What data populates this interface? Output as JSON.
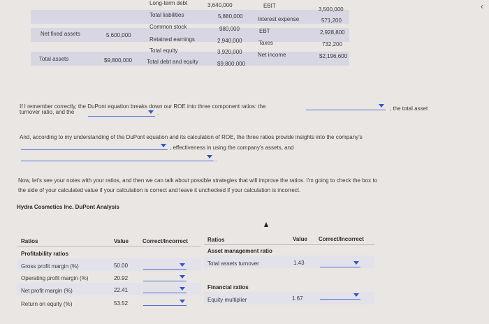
{
  "balance": {
    "long_term_debt_label": "Long-term debt",
    "long_term_debt_value": "3,640,000",
    "total_liabilities_label": "Total liabilities",
    "total_liabilities_value": "5,880,000",
    "common_stock_label": "Common stock",
    "common_stock_value": "980,000",
    "retained_earnings_label": "Retained earnings",
    "retained_earnings_value": "2,940,000",
    "total_equity_label": "Total equity",
    "total_equity_value": "3,920,000",
    "total_debt_equity_label": "Total debt and equity",
    "total_debt_equity_value": "$9,800,000",
    "net_fixed_assets_label": "Net fixed assets",
    "net_fixed_assets_value": "5,600,000",
    "total_assets_label": "Total assets",
    "total_assets_value": "$9,800,000"
  },
  "income": {
    "ebit_label": "EBIT",
    "ebit_value": "3,500,000",
    "interest_label": "Interest expense",
    "interest_value": "571,200",
    "ebt_label": "EBT",
    "ebt_value": "2,928,800",
    "taxes_label": "Taxes",
    "taxes_value": "732,200",
    "net_income_label": "Net income",
    "net_income_value": "$2,196,600"
  },
  "text": {
    "p1_a": "If I remember correctly, the DuPont equation breaks down our ROE into three component ratios: the",
    "p1_b": ", the total asset",
    "p1_c": "turnover ratio, and the",
    "p1_d": ".",
    "p2_a": "And, according to my understanding of the DuPont equation and its calculation of ROE, the three ratios provide insights into the company's",
    "p2_b": ", effectiveness in using the company's assets, and",
    "p2_c": ".",
    "p3_a": "Now, let's see your notes with your ratios, and then we can talk about possible strategies that will improve the ratios. I'm going to check the box to",
    "p3_b": "the side of your calculated value if your calculation is correct and leave it unchecked if your calculation is incorrect.",
    "analysis_title": "Hydra Cosmetics Inc. DuPont Analysis"
  },
  "table": {
    "headers": {
      "ratios": "Ratios",
      "value": "Value",
      "correct": "Correct/Incorrect",
      "ratios2": "Ratios",
      "value2": "Value",
      "correct2": "Correct/Incorrect"
    },
    "profitability_title": "Profitability ratios",
    "left_rows": [
      {
        "label": "Gross profit margin (%)",
        "value": "50.00"
      },
      {
        "label": "Operating profit margin (%)",
        "value": "20.92"
      },
      {
        "label": "Net profit margin (%)",
        "value": "22.41"
      },
      {
        "label": "Return on equity (%)",
        "value": "53.52"
      }
    ],
    "asset_mgmt_title": "Asset management ratio",
    "total_asset_turnover_label": "Total assets turnover",
    "total_asset_turnover_value": "1.43",
    "financial_title": "Financial ratios",
    "equity_multiplier_label": "Equity multiplier",
    "equity_multiplier_value": "1.67"
  }
}
